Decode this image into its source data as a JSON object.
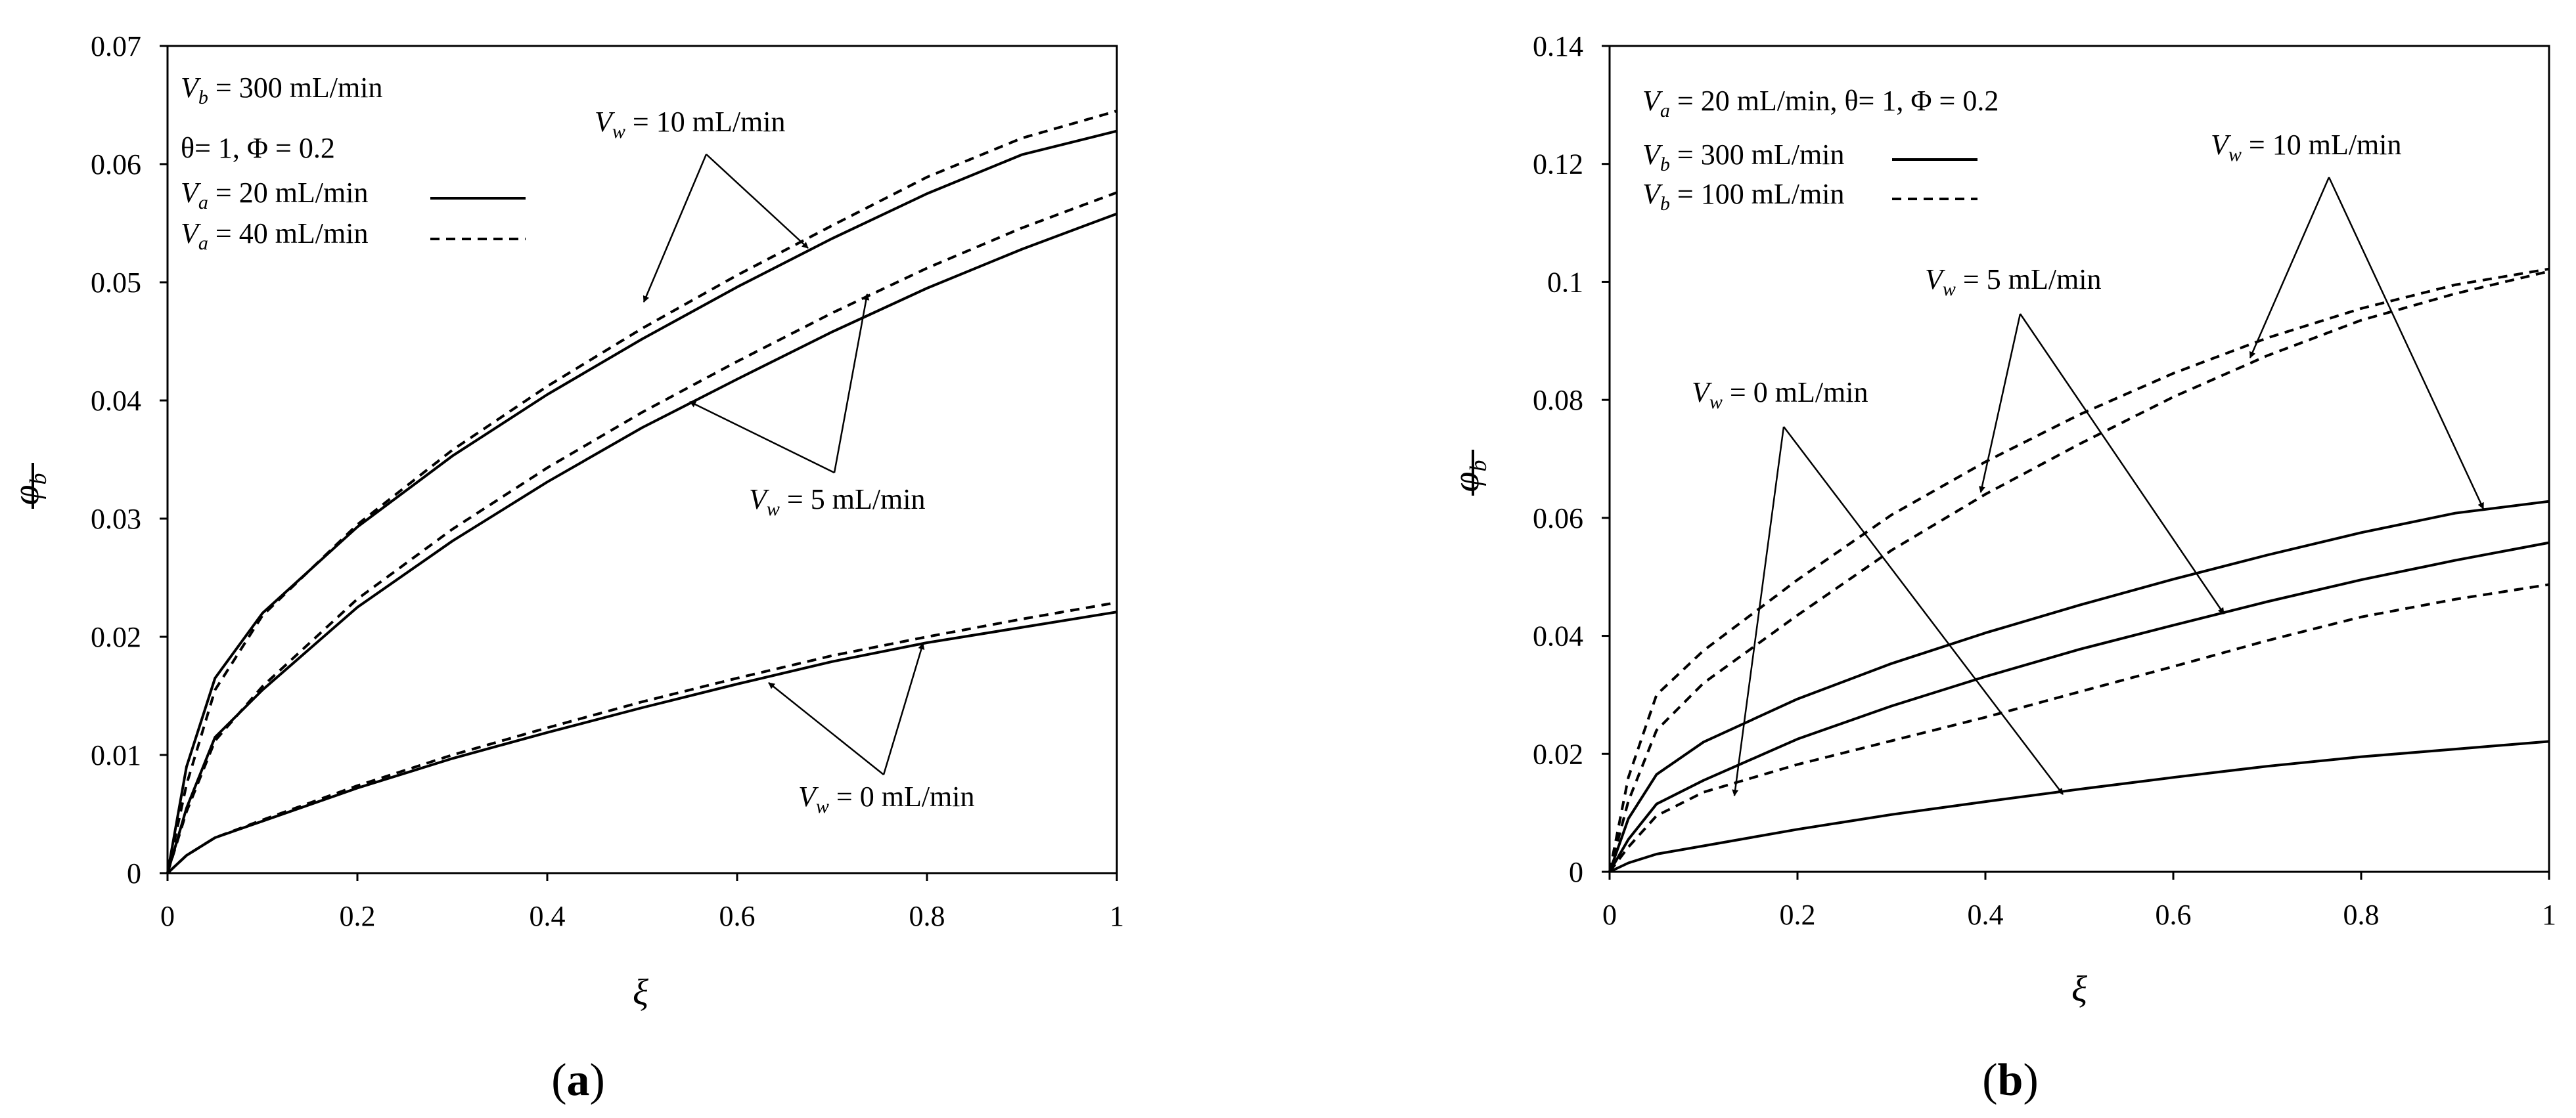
{
  "chart_data": [
    {
      "type": "line",
      "panel_label": {
        "open": "(",
        "letter": "a",
        "close": ")"
      },
      "xlabel": "ξ",
      "ylabel": "φb",
      "xlim": [
        0,
        1
      ],
      "ylim": [
        0,
        0.07
      ],
      "xticks": [
        "0",
        "0.2",
        "0.4",
        "0.6",
        "0.8",
        "1"
      ],
      "yticks": [
        "0",
        "0.01",
        "0.02",
        "0.03",
        "0.04",
        "0.05",
        "0.06",
        "0.07"
      ],
      "grid": false,
      "text_lines": {
        "vb": {
          "sym": "V",
          "sub": "b",
          "rest": " = 300 mL/min"
        },
        "theta": "θ= 1, Φ = 0.2"
      },
      "legend": [
        {
          "sym": "V",
          "sub": "a",
          "rest": " = 20 mL/min",
          "style": "solid"
        },
        {
          "sym": "V",
          "sub": "a",
          "rest": " = 40 mL/min",
          "style": "dashed"
        }
      ],
      "annotations": [
        {
          "sym": "V",
          "sub": "w",
          "rest": " = 10 mL/min"
        },
        {
          "sym": "V",
          "sub": "w",
          "rest": " = 5 mL/min"
        },
        {
          "sym": "V",
          "sub": "w",
          "rest": " = 0 mL/min"
        }
      ],
      "series": [
        {
          "style": "solid",
          "x": [
            0,
            0.02,
            0.05,
            0.1,
            0.2,
            0.3,
            0.4,
            0.5,
            0.6,
            0.7,
            0.8,
            0.9,
            1.0
          ],
          "y": [
            0,
            0.009,
            0.0165,
            0.022,
            0.0293,
            0.0353,
            0.0405,
            0.0452,
            0.0496,
            0.0537,
            0.0575,
            0.0608,
            0.0628
          ]
        },
        {
          "style": "dashed",
          "x": [
            0,
            0.02,
            0.05,
            0.1,
            0.2,
            0.3,
            0.4,
            0.5,
            0.6,
            0.7,
            0.8,
            0.9,
            1.0
          ],
          "y": [
            0,
            0.0075,
            0.0155,
            0.0218,
            0.0295,
            0.0358,
            0.0412,
            0.0461,
            0.0506,
            0.0548,
            0.0589,
            0.0622,
            0.0645
          ]
        },
        {
          "style": "solid",
          "x": [
            0,
            0.02,
            0.05,
            0.1,
            0.2,
            0.3,
            0.4,
            0.5,
            0.6,
            0.7,
            0.8,
            0.9,
            1.0
          ],
          "y": [
            0,
            0.0055,
            0.0115,
            0.0155,
            0.0225,
            0.0281,
            0.0331,
            0.0377,
            0.0418,
            0.0458,
            0.0495,
            0.0528,
            0.0558
          ]
        },
        {
          "style": "dashed",
          "x": [
            0,
            0.02,
            0.05,
            0.1,
            0.2,
            0.3,
            0.4,
            0.5,
            0.6,
            0.7,
            0.8,
            0.9,
            1.0
          ],
          "y": [
            0,
            0.0052,
            0.0112,
            0.0158,
            0.0232,
            0.0291,
            0.0343,
            0.039,
            0.0433,
            0.0474,
            0.0512,
            0.0546,
            0.0576
          ]
        },
        {
          "style": "solid",
          "x": [
            0,
            0.02,
            0.05,
            0.1,
            0.2,
            0.3,
            0.4,
            0.5,
            0.6,
            0.7,
            0.8,
            0.9,
            1.0
          ],
          "y": [
            0,
            0.0015,
            0.003,
            0.0044,
            0.0072,
            0.0097,
            0.0119,
            0.014,
            0.016,
            0.0179,
            0.0195,
            0.0208,
            0.0221
          ]
        },
        {
          "style": "dashed",
          "x": [
            0,
            0.02,
            0.05,
            0.1,
            0.2,
            0.3,
            0.4,
            0.5,
            0.6,
            0.7,
            0.8,
            0.9,
            1.0
          ],
          "y": [
            0,
            0.0015,
            0.003,
            0.0045,
            0.0074,
            0.01,
            0.0123,
            0.0145,
            0.0165,
            0.0184,
            0.02,
            0.0215,
            0.0229
          ]
        }
      ]
    },
    {
      "type": "line",
      "panel_label": {
        "open": "(",
        "letter": "b",
        "close": ")"
      },
      "xlabel": "ξ",
      "ylabel": "φb",
      "xlim": [
        0,
        1
      ],
      "ylim": [
        0,
        0.14
      ],
      "xticks": [
        "0",
        "0.2",
        "0.4",
        "0.6",
        "0.8",
        "1"
      ],
      "yticks": [
        "0",
        "0.02",
        "0.04",
        "0.06",
        "0.08",
        "0.1",
        "0.12",
        "0.14"
      ],
      "grid": false,
      "text_lines": {
        "va": {
          "sym": "V",
          "sub": "a",
          "rest": " = 20 mL/min, ",
          "extra": "θ= 1, Φ = 0.2"
        }
      },
      "legend": [
        {
          "sym": "V",
          "sub": "b",
          "rest": " = 300 mL/min",
          "style": "solid"
        },
        {
          "sym": "V",
          "sub": "b",
          "rest": " = 100 mL/min",
          "style": "dashed"
        }
      ],
      "annotations": [
        {
          "sym": "V",
          "sub": "w",
          "rest": " = 10 mL/min"
        },
        {
          "sym": "V",
          "sub": "w",
          "rest": " = 5 mL/min"
        },
        {
          "sym": "V",
          "sub": "w",
          "rest": " = 0 mL/min"
        }
      ],
      "series": [
        {
          "style": "solid",
          "x": [
            0,
            0.02,
            0.05,
            0.1,
            0.2,
            0.3,
            0.4,
            0.5,
            0.6,
            0.7,
            0.8,
            0.9,
            1.0
          ],
          "y": [
            0,
            0.009,
            0.0165,
            0.022,
            0.0293,
            0.0353,
            0.0405,
            0.0452,
            0.0496,
            0.0537,
            0.0575,
            0.0608,
            0.0628
          ]
        },
        {
          "style": "solid",
          "x": [
            0,
            0.02,
            0.05,
            0.1,
            0.2,
            0.3,
            0.4,
            0.5,
            0.6,
            0.7,
            0.8,
            0.9,
            1.0
          ],
          "y": [
            0,
            0.0055,
            0.0115,
            0.0155,
            0.0225,
            0.0281,
            0.0331,
            0.0377,
            0.0418,
            0.0458,
            0.0495,
            0.0528,
            0.0558
          ]
        },
        {
          "style": "solid",
          "x": [
            0,
            0.02,
            0.05,
            0.1,
            0.2,
            0.3,
            0.4,
            0.5,
            0.6,
            0.7,
            0.8,
            0.9,
            1.0
          ],
          "y": [
            0,
            0.0015,
            0.003,
            0.0044,
            0.0072,
            0.0097,
            0.0119,
            0.014,
            0.016,
            0.0179,
            0.0195,
            0.0208,
            0.0221
          ]
        },
        {
          "style": "dashed",
          "x": [
            0,
            0.02,
            0.05,
            0.1,
            0.2,
            0.3,
            0.4,
            0.5,
            0.6,
            0.7,
            0.8,
            0.9,
            1.0
          ],
          "y": [
            0,
            0.016,
            0.03,
            0.0375,
            0.0495,
            0.0605,
            0.0695,
            0.0775,
            0.0845,
            0.0905,
            0.0955,
            0.0995,
            0.1022
          ]
        },
        {
          "style": "dashed",
          "x": [
            0,
            0.02,
            0.05,
            0.1,
            0.2,
            0.3,
            0.4,
            0.5,
            0.6,
            0.7,
            0.8,
            0.9,
            1.0
          ],
          "y": [
            0,
            0.012,
            0.024,
            0.032,
            0.0435,
            0.0545,
            0.064,
            0.0725,
            0.0805,
            0.0875,
            0.0935,
            0.098,
            0.1018
          ]
        },
        {
          "style": "dashed",
          "x": [
            0,
            0.02,
            0.05,
            0.1,
            0.2,
            0.3,
            0.4,
            0.5,
            0.6,
            0.7,
            0.8,
            0.9,
            1.0
          ],
          "y": [
            0,
            0.0042,
            0.0095,
            0.0135,
            0.0182,
            0.0222,
            0.0262,
            0.0305,
            0.0348,
            0.0392,
            0.0432,
            0.0462,
            0.0487
          ]
        }
      ]
    }
  ]
}
